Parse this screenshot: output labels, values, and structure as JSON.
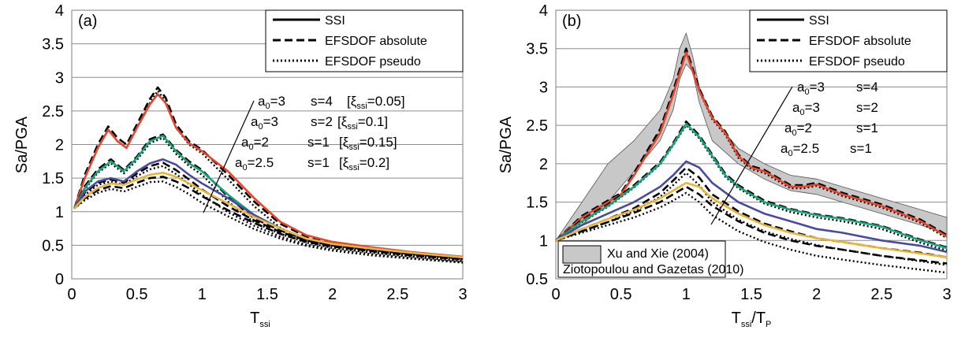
{
  "colors": {
    "a0_3_s_4": "#e8452c",
    "a0_3_s_2": "#1aa37a",
    "a0_2_s_1": "#4a4a9e",
    "a0_2_5_s_1": "#e7b53a",
    "band": "#c8c8c8"
  },
  "chart_data": [
    {
      "panel_label": "(a)",
      "type": "line",
      "ylabel": "Sa/PGA",
      "xlabel_main": "T",
      "xlabel_sub": "ssi",
      "xlim": [
        0,
        3
      ],
      "ylim": [
        0,
        4
      ],
      "xticks": [
        "0",
        "0.5",
        "1",
        "1.5",
        "2",
        "2.5",
        "3"
      ],
      "yticks": [
        "0",
        "0.5",
        "1",
        "1.5",
        "2",
        "2.5",
        "3",
        "3.5",
        "4"
      ],
      "grid": true,
      "legend": {
        "position": "top-right",
        "items": [
          {
            "label": "SSI",
            "style": "solid"
          },
          {
            "label": "EFSDOF absolute",
            "style": "dashed"
          },
          {
            "label": "EFSDOF pseudo",
            "style": "dotted"
          }
        ]
      },
      "annotations": [
        {
          "a0": "3",
          "s": "4",
          "xi": "0.05"
        },
        {
          "a0": "3",
          "s": "2",
          "xi": "0.1"
        },
        {
          "a0": "2",
          "s": "1",
          "xi": "0.15"
        },
        {
          "a0": "2.5",
          "s": "1",
          "xi": "0.2"
        }
      ],
      "groups": [
        {
          "color_key": "a0_3_s_4",
          "x": [
            0.02,
            0.1,
            0.2,
            0.28,
            0.35,
            0.42,
            0.5,
            0.6,
            0.66,
            0.72,
            0.8,
            0.9,
            1.0,
            1.2,
            1.4,
            1.6,
            1.8,
            2.0,
            2.3,
            2.6,
            3.0
          ],
          "ssi": [
            1.05,
            1.5,
            1.95,
            2.22,
            2.05,
            1.95,
            2.25,
            2.6,
            2.75,
            2.62,
            2.25,
            2.02,
            1.9,
            1.6,
            1.2,
            0.85,
            0.65,
            0.55,
            0.47,
            0.4,
            0.33
          ],
          "absolute": [
            1.05,
            1.55,
            2.0,
            2.27,
            2.1,
            2.0,
            2.3,
            2.68,
            2.85,
            2.7,
            2.3,
            2.05,
            1.92,
            1.55,
            1.15,
            0.82,
            0.63,
            0.53,
            0.45,
            0.38,
            0.31
          ],
          "pseudo": [
            1.05,
            1.5,
            1.95,
            2.22,
            2.05,
            1.95,
            2.25,
            2.62,
            2.8,
            2.65,
            2.25,
            2.0,
            1.87,
            1.48,
            1.08,
            0.76,
            0.58,
            0.49,
            0.41,
            0.34,
            0.27
          ]
        },
        {
          "color_key": "a0_3_s_2",
          "x": [
            0.02,
            0.1,
            0.2,
            0.3,
            0.4,
            0.5,
            0.6,
            0.7,
            0.8,
            0.9,
            1.0,
            1.2,
            1.4,
            1.6,
            1.8,
            2.0,
            2.3,
            2.6,
            3.0
          ],
          "ssi": [
            1.05,
            1.35,
            1.6,
            1.75,
            1.6,
            1.8,
            2.05,
            2.13,
            1.9,
            1.72,
            1.6,
            1.25,
            0.95,
            0.75,
            0.6,
            0.52,
            0.45,
            0.39,
            0.32
          ],
          "absolute": [
            1.05,
            1.38,
            1.63,
            1.78,
            1.62,
            1.82,
            2.08,
            2.15,
            1.92,
            1.75,
            1.62,
            1.22,
            0.9,
            0.72,
            0.58,
            0.5,
            0.43,
            0.37,
            0.3
          ],
          "pseudo": [
            1.05,
            1.33,
            1.58,
            1.72,
            1.57,
            1.77,
            2.02,
            2.1,
            1.86,
            1.68,
            1.55,
            1.15,
            0.84,
            0.67,
            0.54,
            0.46,
            0.39,
            0.33,
            0.26
          ]
        },
        {
          "color_key": "a0_2_s_1",
          "x": [
            0.02,
            0.1,
            0.2,
            0.3,
            0.4,
            0.5,
            0.6,
            0.7,
            0.8,
            0.9,
            1.0,
            1.2,
            1.4,
            1.6,
            1.8,
            2.0,
            2.3,
            2.6,
            3.0
          ],
          "ssi": [
            1.05,
            1.3,
            1.45,
            1.5,
            1.45,
            1.6,
            1.72,
            1.78,
            1.7,
            1.55,
            1.42,
            1.2,
            0.95,
            0.75,
            0.6,
            0.52,
            0.45,
            0.39,
            0.32
          ],
          "absolute": [
            1.05,
            1.28,
            1.43,
            1.48,
            1.43,
            1.57,
            1.68,
            1.73,
            1.62,
            1.48,
            1.33,
            1.08,
            0.87,
            0.7,
            0.57,
            0.5,
            0.43,
            0.37,
            0.3
          ],
          "pseudo": [
            1.05,
            1.25,
            1.4,
            1.45,
            1.4,
            1.53,
            1.63,
            1.68,
            1.56,
            1.41,
            1.25,
            0.99,
            0.79,
            0.63,
            0.51,
            0.44,
            0.37,
            0.31,
            0.25
          ]
        },
        {
          "color_key": "a0_2_5_s_1",
          "x": [
            0.02,
            0.1,
            0.2,
            0.3,
            0.4,
            0.5,
            0.6,
            0.7,
            0.8,
            0.9,
            1.0,
            1.2,
            1.4,
            1.6,
            1.8,
            2.0,
            2.3,
            2.6,
            3.0
          ],
          "ssi": [
            1.05,
            1.22,
            1.35,
            1.42,
            1.4,
            1.48,
            1.55,
            1.58,
            1.52,
            1.42,
            1.32,
            1.12,
            0.92,
            0.75,
            0.6,
            0.52,
            0.45,
            0.39,
            0.32
          ],
          "absolute": [
            1.05,
            1.2,
            1.32,
            1.38,
            1.35,
            1.43,
            1.5,
            1.52,
            1.45,
            1.35,
            1.23,
            1.02,
            0.83,
            0.67,
            0.55,
            0.48,
            0.41,
            0.35,
            0.29
          ],
          "pseudo": [
            1.05,
            1.17,
            1.28,
            1.34,
            1.3,
            1.37,
            1.44,
            1.45,
            1.37,
            1.26,
            1.13,
            0.93,
            0.74,
            0.6,
            0.49,
            0.42,
            0.35,
            0.3,
            0.24
          ]
        }
      ]
    },
    {
      "panel_label": "(b)",
      "type": "line",
      "ylabel": "Sa/PGA",
      "xlabel_main": "T",
      "xlabel_sub": "ssi",
      "xlabel_tail": "/T",
      "xlabel_tail_sub": "P",
      "xlim": [
        0,
        3
      ],
      "ylim": [
        0.5,
        4
      ],
      "xticks": [
        "0",
        "0.5",
        "1",
        "1.5",
        "2",
        "2.5",
        "3"
      ],
      "yticks": [
        "0.5",
        "1",
        "1.5",
        "2",
        "2.5",
        "3",
        "3.5",
        "4"
      ],
      "grid": true,
      "legend": {
        "position": "top-right",
        "items": [
          {
            "label": "SSI",
            "style": "solid"
          },
          {
            "label": "EFSDOF absolute",
            "style": "dashed"
          },
          {
            "label": "EFSDOF pseudo",
            "style": "dotted"
          }
        ]
      },
      "band_legend": {
        "position": "bottom-left",
        "items": [
          "Xu and Xie (2004)",
          "Ziotopoulou and Gazetas (2010)"
        ]
      },
      "annotations": [
        {
          "a0": "3",
          "s": "4"
        },
        {
          "a0": "3",
          "s": "2"
        },
        {
          "a0": "2",
          "s": "1"
        },
        {
          "a0": "2.5",
          "s": "1"
        }
      ],
      "band": {
        "x": [
          0,
          0.2,
          0.4,
          0.6,
          0.8,
          0.9,
          0.95,
          1.0,
          1.05,
          1.1,
          1.2,
          1.4,
          1.6,
          1.8,
          2.0,
          2.2,
          2.5,
          2.8,
          3.0
        ],
        "upper": [
          1.0,
          1.5,
          2.0,
          2.3,
          2.7,
          3.1,
          3.5,
          3.7,
          3.4,
          3.0,
          2.6,
          2.2,
          2.0,
          1.85,
          1.8,
          1.7,
          1.55,
          1.4,
          1.3
        ],
        "lower": [
          1.0,
          1.2,
          1.5,
          1.9,
          2.3,
          2.7,
          3.1,
          3.3,
          3.2,
          2.8,
          2.3,
          2.0,
          1.8,
          1.65,
          1.6,
          1.5,
          1.35,
          1.2,
          1.08
        ]
      },
      "groups": [
        {
          "color_key": "a0_3_s_4",
          "x": [
            0,
            0.2,
            0.4,
            0.5,
            0.6,
            0.8,
            0.9,
            1.0,
            1.1,
            1.2,
            1.3,
            1.4,
            1.5,
            1.6,
            1.7,
            1.8,
            1.9,
            2.0,
            2.2,
            2.5,
            2.8,
            3.0
          ],
          "ssi": [
            1.0,
            1.3,
            1.5,
            1.6,
            1.85,
            2.4,
            2.9,
            3.45,
            2.95,
            2.6,
            2.4,
            2.1,
            1.95,
            1.9,
            1.8,
            1.7,
            1.7,
            1.73,
            1.6,
            1.45,
            1.25,
            1.05
          ],
          "absolute": [
            1.0,
            1.32,
            1.52,
            1.62,
            1.88,
            2.45,
            2.95,
            3.5,
            2.98,
            2.62,
            2.42,
            2.12,
            1.97,
            1.92,
            1.82,
            1.72,
            1.72,
            1.75,
            1.62,
            1.47,
            1.27,
            1.07
          ],
          "pseudo": [
            1.0,
            1.3,
            1.5,
            1.6,
            1.86,
            2.42,
            2.92,
            3.47,
            2.95,
            2.58,
            2.38,
            2.08,
            1.93,
            1.88,
            1.78,
            1.68,
            1.68,
            1.71,
            1.58,
            1.43,
            1.23,
            1.03
          ]
        },
        {
          "color_key": "a0_3_s_2",
          "x": [
            0,
            0.2,
            0.4,
            0.6,
            0.8,
            0.9,
            1.0,
            1.1,
            1.2,
            1.3,
            1.4,
            1.6,
            1.8,
            2.0,
            2.2,
            2.5,
            2.8,
            3.0
          ],
          "ssi": [
            1.0,
            1.25,
            1.45,
            1.7,
            2.0,
            2.25,
            2.52,
            2.35,
            2.1,
            1.85,
            1.7,
            1.5,
            1.4,
            1.33,
            1.28,
            1.18,
            1.0,
            0.9
          ],
          "absolute": [
            1.0,
            1.27,
            1.47,
            1.72,
            2.02,
            2.27,
            2.55,
            2.37,
            2.12,
            1.87,
            1.72,
            1.52,
            1.41,
            1.34,
            1.29,
            1.19,
            1.01,
            0.91
          ],
          "pseudo": [
            1.0,
            1.24,
            1.44,
            1.69,
            1.99,
            2.24,
            2.5,
            2.33,
            2.08,
            1.83,
            1.68,
            1.48,
            1.37,
            1.3,
            1.25,
            1.15,
            0.97,
            0.87
          ]
        },
        {
          "color_key": "a0_2_s_1",
          "x": [
            0,
            0.2,
            0.4,
            0.6,
            0.8,
            0.9,
            1.0,
            1.1,
            1.2,
            1.4,
            1.6,
            1.8,
            2.0,
            2.2,
            2.5,
            2.8,
            3.0
          ],
          "ssi": [
            1.0,
            1.2,
            1.35,
            1.5,
            1.7,
            1.85,
            2.03,
            1.95,
            1.75,
            1.5,
            1.35,
            1.25,
            1.15,
            1.1,
            1.0,
            0.93,
            0.85
          ],
          "absolute": [
            1.0,
            1.15,
            1.28,
            1.42,
            1.62,
            1.78,
            1.95,
            1.82,
            1.6,
            1.38,
            1.22,
            1.12,
            1.03,
            0.98,
            0.9,
            0.84,
            0.78
          ],
          "pseudo": [
            1.0,
            1.12,
            1.24,
            1.38,
            1.57,
            1.72,
            1.88,
            1.72,
            1.5,
            1.27,
            1.12,
            1.02,
            0.94,
            0.88,
            0.8,
            0.73,
            0.68
          ]
        },
        {
          "color_key": "a0_2_5_s_1",
          "x": [
            0,
            0.2,
            0.4,
            0.6,
            0.8,
            0.9,
            1.0,
            1.1,
            1.2,
            1.4,
            1.6,
            1.8,
            2.0,
            2.2,
            2.5,
            2.8,
            3.0
          ],
          "ssi": [
            1.0,
            1.15,
            1.28,
            1.4,
            1.55,
            1.65,
            1.75,
            1.7,
            1.55,
            1.35,
            1.2,
            1.1,
            1.03,
            0.98,
            0.9,
            0.83,
            0.78
          ],
          "absolute": [
            1.0,
            1.12,
            1.24,
            1.36,
            1.5,
            1.6,
            1.7,
            1.6,
            1.45,
            1.25,
            1.1,
            1.0,
            0.93,
            0.88,
            0.8,
            0.74,
            0.7
          ],
          "pseudo": [
            1.0,
            1.1,
            1.2,
            1.3,
            1.43,
            1.52,
            1.62,
            1.5,
            1.33,
            1.12,
            0.98,
            0.88,
            0.8,
            0.75,
            0.68,
            0.62,
            0.58
          ]
        }
      ]
    }
  ]
}
